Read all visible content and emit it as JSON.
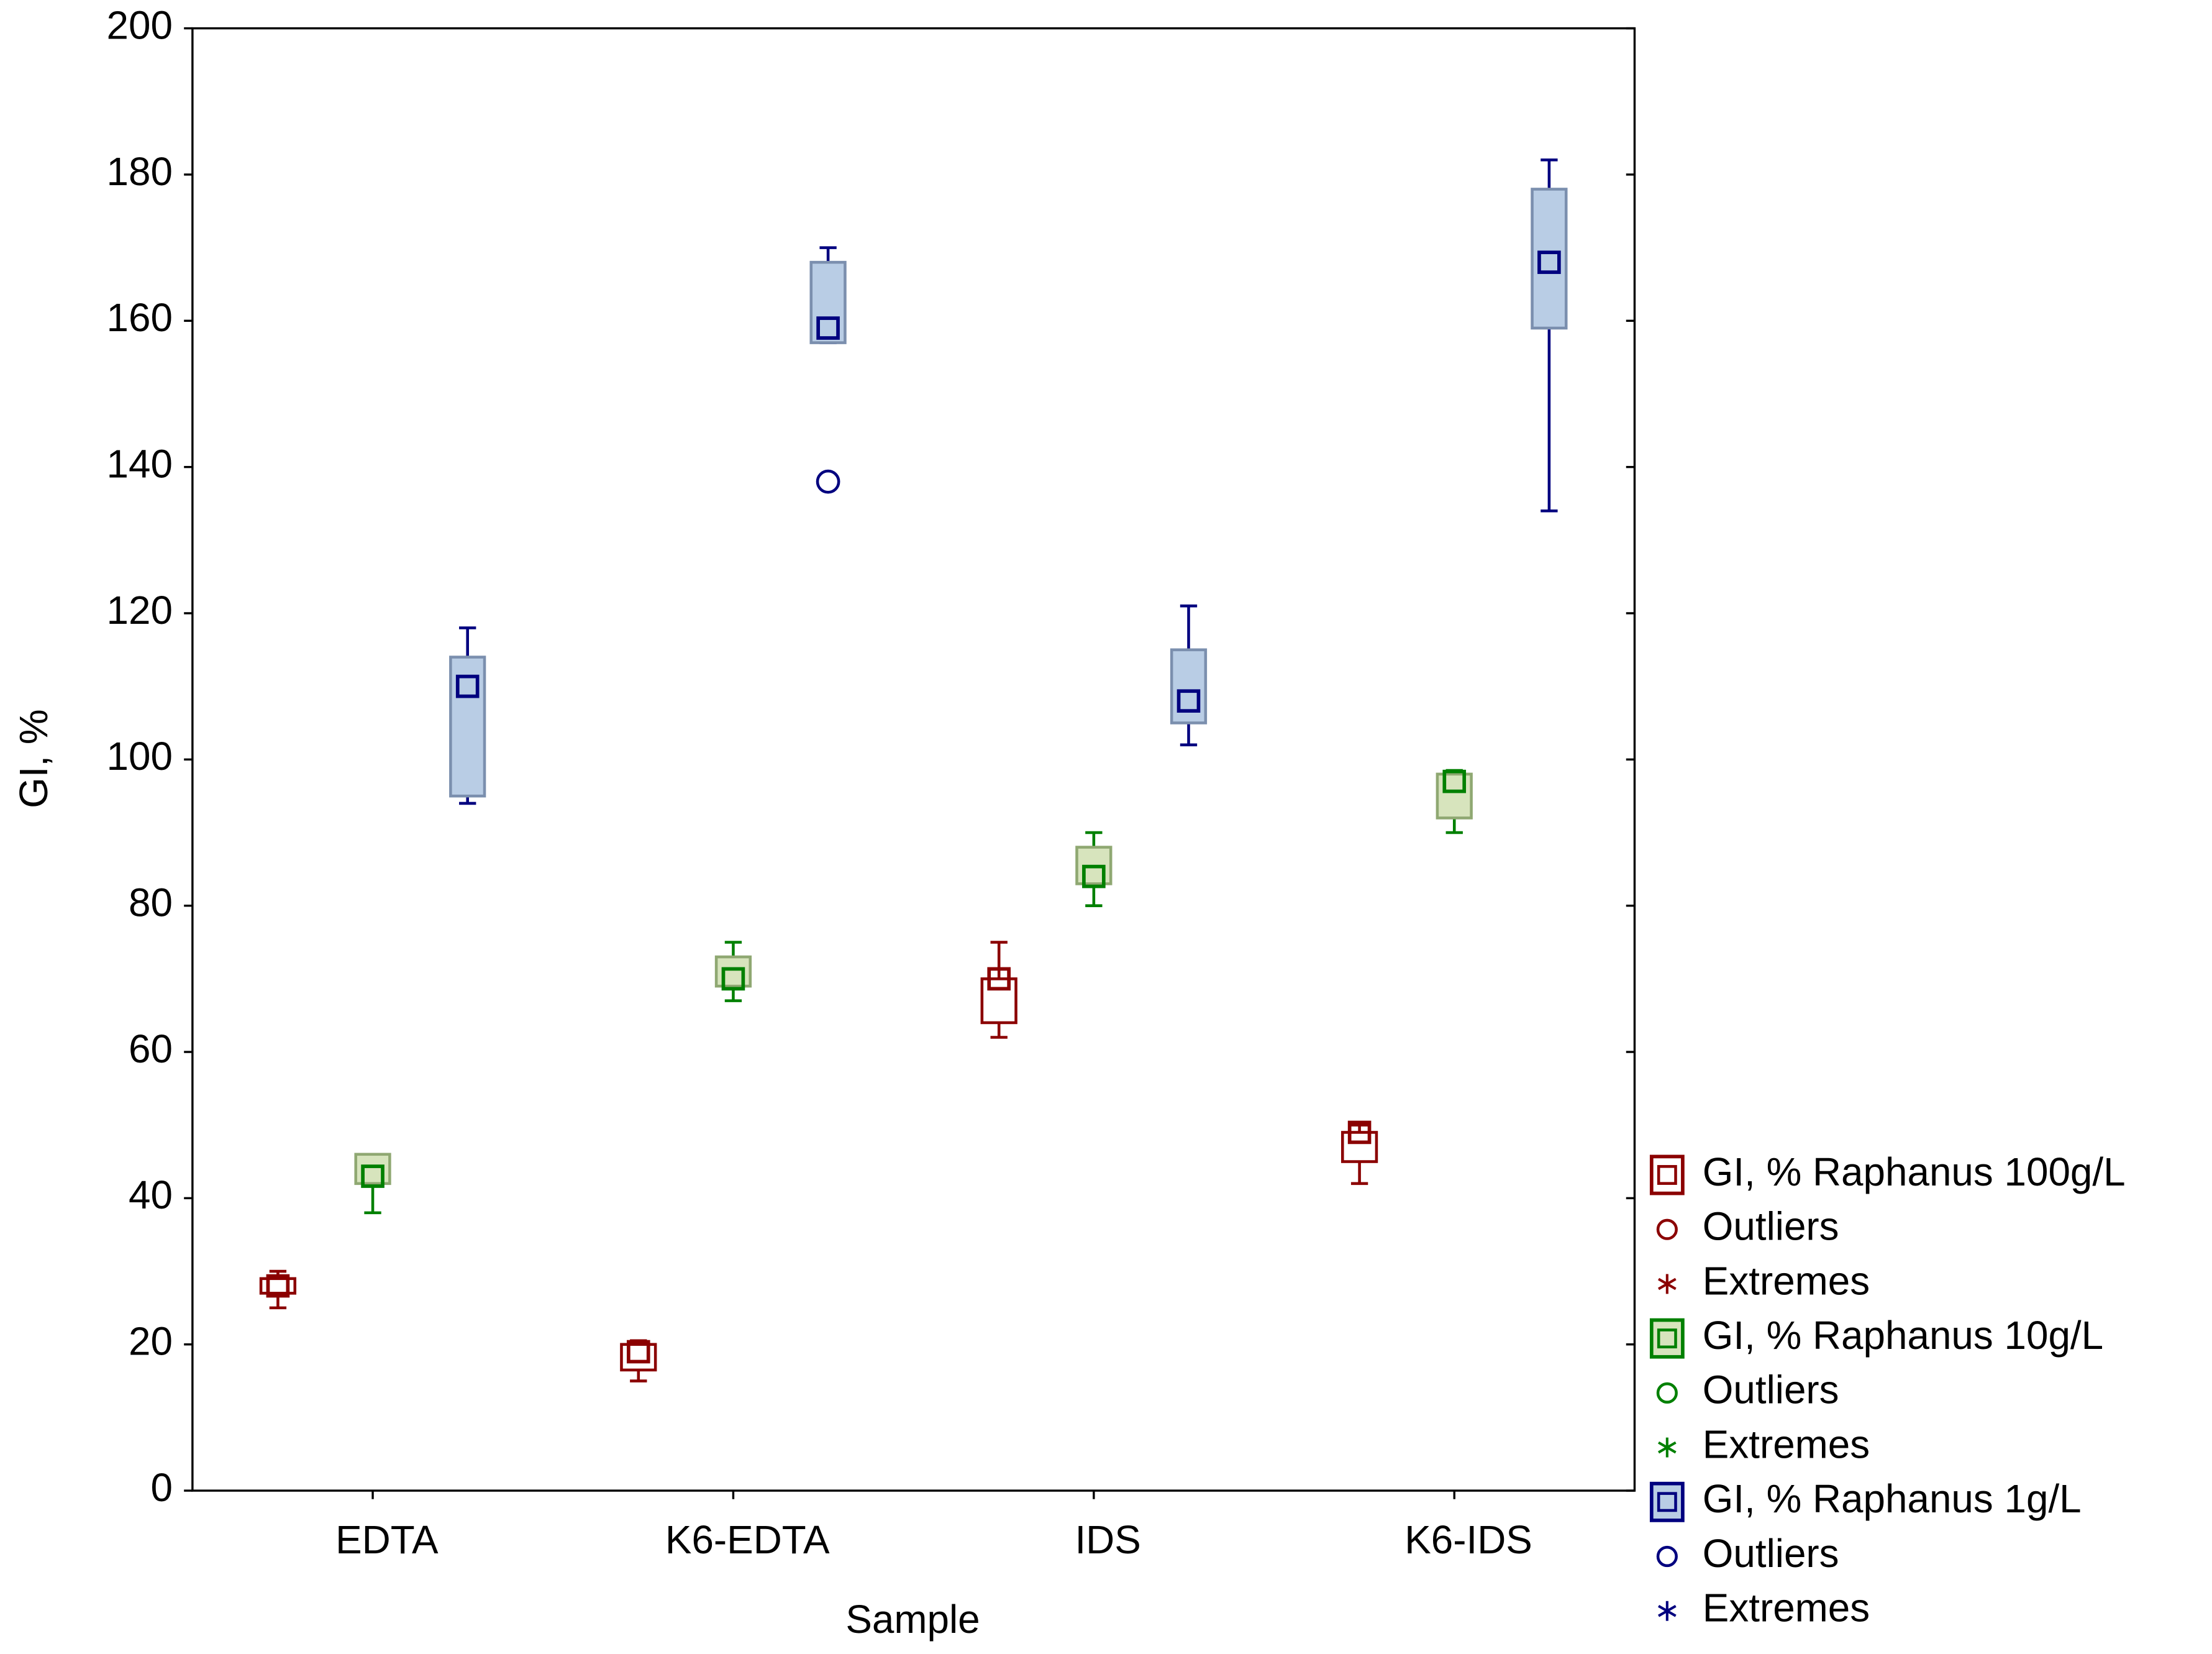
{
  "chart_data": {
    "type": "box",
    "x_label": "Sample",
    "y_label": "GI, %",
    "categories": [
      "EDTA",
      "K6-EDTA",
      "IDS",
      "K6-IDS"
    ],
    "ylim": [
      0,
      200
    ],
    "yticks": [
      0,
      20,
      40,
      60,
      80,
      100,
      120,
      140,
      160,
      180,
      200
    ],
    "legend_items": [
      "Outliers",
      "Extremes"
    ],
    "series": [
      {
        "name": "GI, % Raphanus 100g/L",
        "color": "#8b0000",
        "box_fill": "#ffffff",
        "box_stroke": "#8b0000",
        "stats": [
          {
            "median": 28,
            "q1": 27,
            "q3": 29,
            "min": 25,
            "max": 30,
            "outliers": []
          },
          {
            "median": 19,
            "q1": 16.5,
            "q3": 20,
            "min": 15,
            "max": 20.5,
            "outliers": []
          },
          {
            "median": 70,
            "q1": 64,
            "q3": 70,
            "min": 62,
            "max": 75,
            "outliers": []
          },
          {
            "median": 49,
            "q1": 45,
            "q3": 49,
            "min": 42,
            "max": 50,
            "outliers": []
          }
        ]
      },
      {
        "name": "GI, % Raphanus 10g/L",
        "color": "#008000",
        "box_fill": "#d7e4bd",
        "box_stroke": "#8fa872",
        "stats": [
          {
            "median": 43,
            "q1": 42,
            "q3": 46,
            "min": 38,
            "max": 46,
            "outliers": []
          },
          {
            "median": 70,
            "q1": 69,
            "q3": 73,
            "min": 67,
            "max": 75,
            "outliers": []
          },
          {
            "median": 84,
            "q1": 83,
            "q3": 88,
            "min": 80,
            "max": 90,
            "outliers": []
          },
          {
            "median": 97,
            "q1": 92,
            "q3": 98,
            "min": 90,
            "max": 98.5,
            "outliers": []
          }
        ]
      },
      {
        "name": "GI, % Raphanus 1g/L",
        "color": "#00007f",
        "box_fill": "#b9cde5",
        "box_stroke": "#7b8fae",
        "stats": [
          {
            "median": 110,
            "q1": 95,
            "q3": 114,
            "min": 94,
            "max": 118,
            "outliers": []
          },
          {
            "median": 159,
            "q1": 157,
            "q3": 168,
            "min": 157,
            "max": 170,
            "outliers": [
              138
            ]
          },
          {
            "median": 108,
            "q1": 105,
            "q3": 115,
            "min": 102,
            "max": 121,
            "outliers": []
          },
          {
            "median": 168,
            "q1": 159,
            "q3": 178,
            "min": 134,
            "max": 182,
            "outliers": []
          }
        ]
      }
    ]
  }
}
